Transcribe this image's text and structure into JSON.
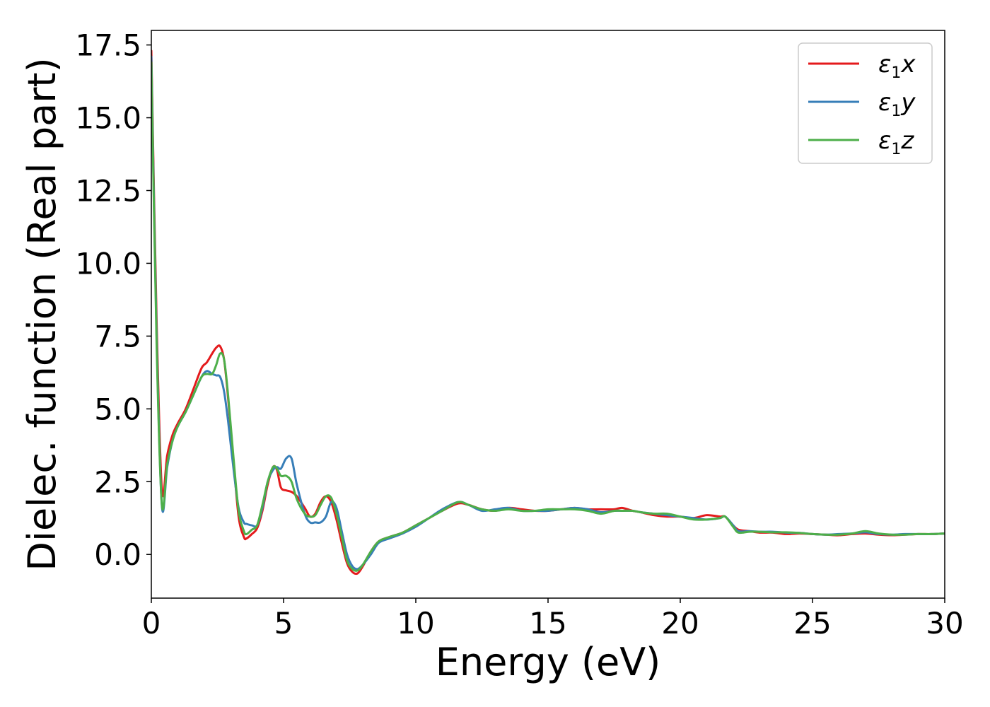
{
  "chart_data": {
    "type": "line",
    "title": "",
    "xlabel": "Energy (eV)",
    "ylabel": "Dielec. function (Real part)",
    "xlim": [
      0,
      30
    ],
    "ylim": [
      -1.5,
      18.0
    ],
    "xticks": [
      0,
      5,
      10,
      15,
      20,
      25,
      30
    ],
    "xtick_labels": [
      "0",
      "5",
      "10",
      "15",
      "20",
      "25",
      "30"
    ],
    "yticks": [
      0,
      2.5,
      5,
      7.5,
      10,
      12.5,
      15,
      17.5
    ],
    "ytick_labels": [
      "0.0",
      "2.5",
      "5.0",
      "7.5",
      "10.0",
      "12.5",
      "15.0",
      "17.5"
    ],
    "grid": false,
    "legend_position": "top-right",
    "series": [
      {
        "name": "ε1x",
        "legend": {
          "symbol": "ε",
          "sub": "1",
          "var": "x"
        },
        "color": "#e41a1c",
        "x": [
          0.0,
          0.2,
          0.4,
          0.6,
          0.8,
          1.0,
          1.3,
          1.6,
          1.9,
          2.1,
          2.3,
          2.45,
          2.6,
          2.75,
          2.9,
          3.1,
          3.3,
          3.5,
          3.6,
          3.8,
          4.0,
          4.2,
          4.4,
          4.6,
          4.75,
          4.9,
          5.1,
          5.3,
          5.5,
          5.8,
          6.0,
          6.2,
          6.4,
          6.6,
          6.8,
          7.0,
          7.2,
          7.4,
          7.6,
          7.8,
          8.0,
          8.3,
          8.6,
          9.0,
          9.5,
          10.0,
          10.5,
          11.0,
          11.6,
          12.0,
          12.5,
          13.0,
          13.5,
          14.0,
          14.5,
          15.0,
          15.5,
          16.0,
          16.5,
          17.0,
          17.5,
          17.8,
          18.2,
          18.5,
          19.0,
          19.5,
          20.0,
          20.5,
          21.0,
          21.5,
          21.7,
          22.0,
          22.2,
          22.6,
          23.0,
          23.5,
          24.0,
          24.5,
          25.0,
          25.5,
          26.0,
          26.5,
          27.0,
          27.5,
          28.0,
          28.5,
          29.0,
          29.5,
          30.0
        ],
        "y": [
          17.3,
          8.0,
          2.2,
          3.4,
          4.1,
          4.5,
          5.0,
          5.7,
          6.4,
          6.6,
          6.9,
          7.1,
          7.15,
          6.7,
          5.4,
          3.3,
          1.3,
          0.6,
          0.55,
          0.7,
          0.9,
          1.5,
          2.4,
          3.0,
          2.9,
          2.3,
          2.2,
          2.15,
          2.0,
          1.6,
          1.3,
          1.4,
          1.8,
          2.0,
          1.8,
          1.2,
          0.4,
          -0.3,
          -0.6,
          -0.65,
          -0.4,
          0.1,
          0.45,
          0.6,
          0.75,
          1.0,
          1.25,
          1.5,
          1.75,
          1.7,
          1.55,
          1.5,
          1.6,
          1.55,
          1.5,
          1.5,
          1.55,
          1.6,
          1.55,
          1.55,
          1.55,
          1.6,
          1.5,
          1.45,
          1.35,
          1.3,
          1.3,
          1.25,
          1.35,
          1.3,
          1.3,
          1.0,
          0.85,
          0.8,
          0.75,
          0.75,
          0.7,
          0.72,
          0.7,
          0.68,
          0.66,
          0.7,
          0.72,
          0.68,
          0.66,
          0.68,
          0.7,
          0.7,
          0.72
        ]
      },
      {
        "name": "ε1y",
        "legend": {
          "symbol": "ε",
          "sub": "1",
          "var": "y"
        },
        "color": "#377eb8",
        "x": [
          0.0,
          0.2,
          0.4,
          0.6,
          0.8,
          1.0,
          1.3,
          1.6,
          1.9,
          2.1,
          2.3,
          2.45,
          2.6,
          2.75,
          2.9,
          3.1,
          3.3,
          3.5,
          3.6,
          3.8,
          4.0,
          4.2,
          4.4,
          4.6,
          4.75,
          4.9,
          5.1,
          5.3,
          5.5,
          5.8,
          6.0,
          6.2,
          6.4,
          6.6,
          6.8,
          7.0,
          7.2,
          7.4,
          7.6,
          7.8,
          8.0,
          8.3,
          8.6,
          9.0,
          9.5,
          10.0,
          10.5,
          11.0,
          11.6,
          12.0,
          12.5,
          13.0,
          13.5,
          14.0,
          14.5,
          15.0,
          15.5,
          16.0,
          16.5,
          17.0,
          17.5,
          17.8,
          18.2,
          18.5,
          19.0,
          19.5,
          20.0,
          20.5,
          21.0,
          21.5,
          21.7,
          22.0,
          22.2,
          22.6,
          23.0,
          23.5,
          24.0,
          24.5,
          25.0,
          25.5,
          26.0,
          26.5,
          27.0,
          27.5,
          28.0,
          28.5,
          29.0,
          29.5,
          30.0
        ],
        "y": [
          17.1,
          7.5,
          1.65,
          3.0,
          3.9,
          4.4,
          4.9,
          5.5,
          6.1,
          6.3,
          6.2,
          6.15,
          6.1,
          5.6,
          4.6,
          3.0,
          1.6,
          1.1,
          1.05,
          1.0,
          1.0,
          1.6,
          2.5,
          2.9,
          3.0,
          2.95,
          3.3,
          3.3,
          2.4,
          1.4,
          1.1,
          1.1,
          1.1,
          1.3,
          1.8,
          1.6,
          0.8,
          0.0,
          -0.4,
          -0.5,
          -0.35,
          0.0,
          0.4,
          0.55,
          0.72,
          0.95,
          1.25,
          1.55,
          1.8,
          1.7,
          1.5,
          1.55,
          1.6,
          1.5,
          1.5,
          1.5,
          1.55,
          1.6,
          1.55,
          1.45,
          1.5,
          1.5,
          1.5,
          1.45,
          1.4,
          1.35,
          1.3,
          1.25,
          1.2,
          1.25,
          1.3,
          1.0,
          0.8,
          0.8,
          0.78,
          0.78,
          0.75,
          0.74,
          0.7,
          0.68,
          0.7,
          0.72,
          0.76,
          0.7,
          0.68,
          0.7,
          0.7,
          0.7,
          0.72
        ]
      },
      {
        "name": "ε1z",
        "legend": {
          "symbol": "ε",
          "sub": "1",
          "var": "z"
        },
        "color": "#4daf4a",
        "x": [
          0.0,
          0.2,
          0.4,
          0.6,
          0.8,
          1.0,
          1.3,
          1.6,
          1.9,
          2.1,
          2.3,
          2.45,
          2.6,
          2.75,
          2.9,
          3.1,
          3.3,
          3.5,
          3.6,
          3.8,
          4.0,
          4.2,
          4.4,
          4.6,
          4.75,
          4.9,
          5.1,
          5.3,
          5.5,
          5.8,
          6.0,
          6.2,
          6.4,
          6.6,
          6.8,
          7.0,
          7.2,
          7.4,
          7.6,
          7.8,
          8.0,
          8.3,
          8.6,
          9.0,
          9.5,
          10.0,
          10.5,
          11.0,
          11.6,
          12.0,
          12.5,
          13.0,
          13.5,
          14.0,
          14.5,
          15.0,
          15.5,
          16.0,
          16.5,
          17.0,
          17.5,
          17.8,
          18.2,
          18.5,
          19.0,
          19.5,
          20.0,
          20.5,
          21.0,
          21.5,
          21.7,
          22.0,
          22.2,
          22.6,
          23.0,
          23.5,
          24.0,
          24.5,
          25.0,
          25.5,
          26.0,
          26.5,
          27.0,
          27.5,
          28.0,
          28.5,
          29.0,
          29.5,
          30.0
        ],
        "y": [
          16.9,
          7.2,
          1.7,
          3.1,
          3.9,
          4.4,
          4.9,
          5.5,
          6.1,
          6.2,
          6.2,
          6.5,
          6.9,
          6.7,
          5.5,
          3.4,
          1.5,
          0.8,
          0.7,
          0.85,
          1.0,
          1.7,
          2.5,
          3.0,
          2.95,
          2.7,
          2.7,
          2.5,
          1.9,
          1.4,
          1.3,
          1.35,
          1.7,
          2.0,
          1.95,
          1.4,
          0.6,
          -0.2,
          -0.5,
          -0.55,
          -0.35,
          0.1,
          0.45,
          0.6,
          0.75,
          1.0,
          1.25,
          1.5,
          1.8,
          1.7,
          1.55,
          1.5,
          1.55,
          1.5,
          1.5,
          1.55,
          1.55,
          1.55,
          1.5,
          1.4,
          1.5,
          1.5,
          1.5,
          1.45,
          1.4,
          1.4,
          1.3,
          1.2,
          1.2,
          1.25,
          1.3,
          0.95,
          0.75,
          0.78,
          0.78,
          0.76,
          0.76,
          0.74,
          0.7,
          0.68,
          0.68,
          0.72,
          0.8,
          0.72,
          0.68,
          0.68,
          0.7,
          0.7,
          0.72
        ]
      }
    ]
  }
}
